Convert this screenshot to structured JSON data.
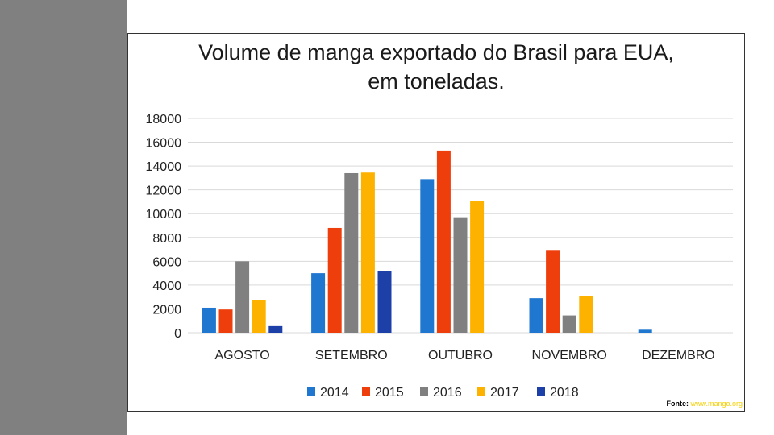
{
  "slide": {
    "side_band_color": "#808080"
  },
  "chart_data": {
    "type": "bar",
    "title_lines": [
      "Volume de manga exportado do Brasil para EUA,",
      "em toneladas."
    ],
    "categories": [
      "AGOSTO",
      "SETEMBRO",
      "OUTUBRO",
      "NOVEMBRO",
      "DEZEMBRO"
    ],
    "series": [
      {
        "name": "2014",
        "color": "#1f77d0",
        "values": [
          2100,
          5000,
          12900,
          2900,
          250
        ]
      },
      {
        "name": "2015",
        "color": "#ee3e0c",
        "values": [
          1950,
          8800,
          15300,
          6950,
          0
        ]
      },
      {
        "name": "2016",
        "color": "#808080",
        "values": [
          6000,
          13400,
          9700,
          1450,
          0
        ]
      },
      {
        "name": "2017",
        "color": "#fdb200",
        "values": [
          2750,
          13450,
          11050,
          3050,
          0
        ]
      },
      {
        "name": "2018",
        "color": "#1c3fa8",
        "values": [
          550,
          5150,
          0,
          0,
          0
        ]
      }
    ],
    "ylim": [
      0,
      18000
    ],
    "yticks": [
      0,
      2000,
      4000,
      6000,
      8000,
      10000,
      12000,
      14000,
      16000,
      18000
    ],
    "xlabel": "",
    "ylabel": "",
    "grid": true,
    "legend_position": "bottom"
  },
  "source": {
    "label": "Fonte:",
    "url": "www.mango.org"
  }
}
